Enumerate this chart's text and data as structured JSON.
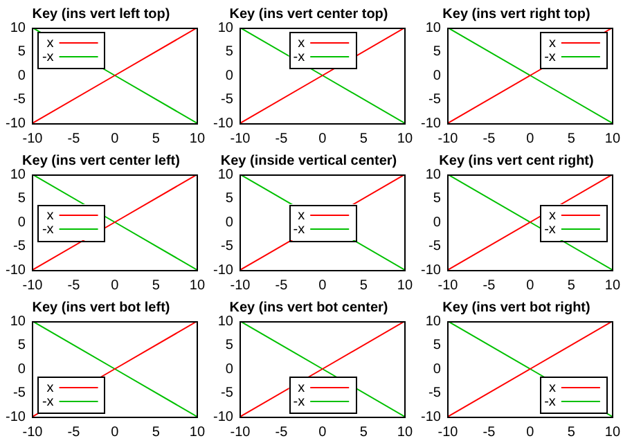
{
  "chart_data": [
    {
      "type": "line",
      "title": "Key (ins vert left top)",
      "x": [
        -10,
        0,
        10
      ],
      "series": [
        {
          "name": "x",
          "color": "#ff0000",
          "values": [
            -10,
            0,
            10
          ]
        },
        {
          "name": "-x",
          "color": "#00c000",
          "values": [
            10,
            0,
            -10
          ]
        }
      ],
      "xlim": [
        -10,
        10
      ],
      "xticks": [
        -10,
        -5,
        0,
        5,
        10
      ],
      "ylim": [
        -10,
        10
      ],
      "yticks": [
        -10,
        -5,
        0,
        5,
        10
      ],
      "grid": false,
      "legend": "top left",
      "marker": "none",
      "line_style": "solid"
    },
    {
      "type": "line",
      "title": "Key (ins vert center top)",
      "x": [
        -10,
        0,
        10
      ],
      "series": [
        {
          "name": "x",
          "color": "#ff0000",
          "values": [
            -10,
            0,
            10
          ]
        },
        {
          "name": "-x",
          "color": "#00c000",
          "values": [
            10,
            0,
            -10
          ]
        }
      ],
      "xlim": [
        -10,
        10
      ],
      "xticks": [
        -10,
        -5,
        0,
        5,
        10
      ],
      "ylim": [
        -10,
        10
      ],
      "yticks": [
        -10,
        -5,
        0,
        5,
        10
      ],
      "grid": false,
      "legend": "top",
      "marker": "none",
      "line_style": "solid"
    },
    {
      "type": "line",
      "title": "Key (ins vert right top)",
      "x": [
        -10,
        0,
        10
      ],
      "series": [
        {
          "name": "x",
          "color": "#ff0000",
          "values": [
            -10,
            0,
            10
          ]
        },
        {
          "name": "-x",
          "color": "#00c000",
          "values": [
            10,
            0,
            -10
          ]
        }
      ],
      "xlim": [
        -10,
        10
      ],
      "xticks": [
        -10,
        -5,
        0,
        5,
        10
      ],
      "ylim": [
        -10,
        10
      ],
      "yticks": [
        -10,
        -5,
        0,
        5,
        10
      ],
      "grid": false,
      "legend": "top right",
      "marker": "none",
      "line_style": "solid"
    },
    {
      "type": "line",
      "title": "Key (ins vert center left)",
      "x": [
        -10,
        0,
        10
      ],
      "series": [
        {
          "name": "x",
          "color": "#ff0000",
          "values": [
            -10,
            0,
            10
          ]
        },
        {
          "name": "-x",
          "color": "#00c000",
          "values": [
            10,
            0,
            -10
          ]
        }
      ],
      "xlim": [
        -10,
        10
      ],
      "xticks": [
        -10,
        -5,
        0,
        5,
        10
      ],
      "ylim": [
        -10,
        10
      ],
      "yticks": [
        -10,
        -5,
        0,
        5,
        10
      ],
      "grid": false,
      "legend": "left",
      "marker": "none",
      "line_style": "solid"
    },
    {
      "type": "line",
      "title": "Key (inside vertical center)",
      "x": [
        -10,
        -7,
        10
      ],
      "series": [
        {
          "name": "x",
          "color": "#ff0000",
          "values": [
            -10,
            -7,
            10
          ]
        },
        {
          "name": "-x",
          "color": "#00c000",
          "values": [
            10,
            7,
            -10
          ]
        }
      ],
      "xlim": [
        -10,
        10
      ],
      "xticks": [
        -10,
        -5,
        0,
        5,
        10
      ],
      "ylim": [
        -10,
        10
      ],
      "yticks": [
        -10,
        -5,
        0,
        5,
        10
      ],
      "grid": false,
      "legend": "center",
      "marker": "none",
      "line_style": "solid"
    },
    {
      "type": "line",
      "title": "Key (ins vert cent right)",
      "x": [
        -10,
        0,
        10
      ],
      "series": [
        {
          "name": "x",
          "color": "#ff0000",
          "values": [
            -10,
            0,
            10
          ]
        },
        {
          "name": "-x",
          "color": "#00c000",
          "values": [
            10,
            0,
            -10
          ]
        }
      ],
      "xlim": [
        -10,
        10
      ],
      "xticks": [
        -10,
        -5,
        0,
        5,
        10
      ],
      "ylim": [
        -10,
        10
      ],
      "yticks": [
        -10,
        -5,
        0,
        5,
        10
      ],
      "grid": false,
      "legend": "right",
      "marker": "none",
      "line_style": "solid"
    },
    {
      "type": "line",
      "title": "Key (ins vert bot left)",
      "x": [
        -10,
        0,
        10
      ],
      "series": [
        {
          "name": "x",
          "color": "#ff0000",
          "values": [
            -10,
            0,
            10
          ]
        },
        {
          "name": "-x",
          "color": "#00c000",
          "values": [
            10,
            0,
            -10
          ]
        }
      ],
      "xlim": [
        -10,
        10
      ],
      "xticks": [
        -10,
        -5,
        0,
        5,
        10
      ],
      "ylim": [
        -10,
        10
      ],
      "yticks": [
        -10,
        -5,
        0,
        5,
        10
      ],
      "grid": false,
      "legend": "bottom left",
      "marker": "none",
      "line_style": "solid"
    },
    {
      "type": "line",
      "title": "Key (ins vert bot center)",
      "x": [
        -10,
        0,
        10
      ],
      "series": [
        {
          "name": "x",
          "color": "#ff0000",
          "values": [
            -10,
            0,
            10
          ]
        },
        {
          "name": "-x",
          "color": "#00c000",
          "values": [
            10,
            0,
            -10
          ]
        }
      ],
      "xlim": [
        -10,
        10
      ],
      "xticks": [
        -10,
        -5,
        0,
        5,
        10
      ],
      "ylim": [
        -10,
        10
      ],
      "yticks": [
        -10,
        -5,
        0,
        5,
        10
      ],
      "grid": false,
      "legend": "bottom",
      "marker": "none",
      "line_style": "solid"
    },
    {
      "type": "line",
      "title": "Key (ins vert bot right)",
      "x": [
        -10,
        0,
        10
      ],
      "series": [
        {
          "name": "x",
          "color": "#ff0000",
          "values": [
            -10,
            0,
            10
          ]
        },
        {
          "name": "-x",
          "color": "#00c000",
          "values": [
            10,
            0,
            -10
          ]
        }
      ],
      "xlim": [
        -10,
        10
      ],
      "xticks": [
        -10,
        -5,
        0,
        5,
        10
      ],
      "ylim": [
        -10,
        10
      ],
      "yticks": [
        -10,
        -5,
        0,
        5,
        10
      ],
      "grid": false,
      "legend": "bottom right",
      "marker": "none",
      "line_style": "solid"
    }
  ]
}
